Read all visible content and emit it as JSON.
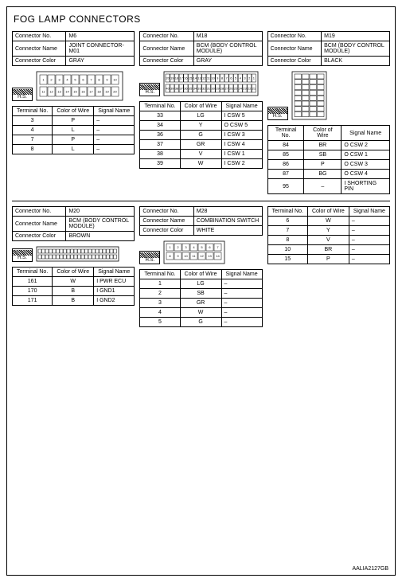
{
  "title": "FOG LAMP CONNECTORS",
  "code": "AALIA2127GB",
  "hs_label": "H.S.",
  "labels": {
    "connector_no": "Connector No.",
    "connector_name": "Connector Name",
    "connector_color": "Connector Color",
    "terminal_no": "Terminal No.",
    "color_of_wire": "Color of Wire",
    "signal_name": "Signal Name"
  },
  "top": {
    "left": {
      "no": "M6",
      "name": "JOINT CONNECTOR-M01",
      "color": "GRAY",
      "pins": [
        "1",
        "2",
        "3",
        "4",
        "5",
        "6",
        "7",
        "8",
        "9",
        "10",
        "11",
        "12",
        "13",
        "14",
        "15",
        "16",
        "17",
        "18",
        "19",
        "20"
      ],
      "wires": [
        {
          "t": "3",
          "c": "P",
          "s": "–"
        },
        {
          "t": "4",
          "c": "L",
          "s": "–"
        },
        {
          "t": "7",
          "c": "P",
          "s": "–"
        },
        {
          "t": "8",
          "c": "L",
          "s": "–"
        }
      ]
    },
    "mid": {
      "no": "M18",
      "name": "BCM (BODY CONTROL MODULE)",
      "color": "GRAY",
      "pins_a": [
        "20",
        "19",
        "18",
        "17",
        "16",
        "15",
        "14",
        "13",
        "12",
        "11",
        "10",
        "9",
        "8",
        "7",
        "6",
        "5",
        "4",
        "3",
        "2",
        "1"
      ],
      "pins_b": [
        "40",
        "39",
        "38",
        "37",
        "36",
        "35",
        "34",
        "33",
        "32",
        "31",
        "30",
        "29",
        "28",
        "27",
        "26",
        "25",
        "24",
        "23",
        "22",
        "21"
      ],
      "wires": [
        {
          "t": "33",
          "c": "LG",
          "s": "I CSW 5"
        },
        {
          "t": "34",
          "c": "Y",
          "s": "O CSW 5"
        },
        {
          "t": "36",
          "c": "G",
          "s": "I CSW 3"
        },
        {
          "t": "37",
          "c": "GR",
          "s": "I CSW 4"
        },
        {
          "t": "38",
          "c": "V",
          "s": "I CSW 1"
        },
        {
          "t": "39",
          "c": "W",
          "s": "I CSW 2"
        }
      ]
    },
    "right": {
      "no": "M19",
      "name": "BCM (BODY CONTROL MODULE)",
      "color": "BLACK",
      "wires": [
        {
          "t": "84",
          "c": "BR",
          "s": "O CSW 2"
        },
        {
          "t": "85",
          "c": "SB",
          "s": "O CSW 1"
        },
        {
          "t": "86",
          "c": "P",
          "s": "O CSW 3"
        },
        {
          "t": "87",
          "c": "BG",
          "s": "O CSW 4"
        },
        {
          "t": "95",
          "c": "–",
          "s": "I SHORTING PIN"
        }
      ]
    }
  },
  "bottom": {
    "left": {
      "no": "M20",
      "name": "BCM (BODY CONTROL MODULE)",
      "color": "BROWN",
      "wires": [
        {
          "t": "161",
          "c": "W",
          "s": "I PWR ECU"
        },
        {
          "t": "170",
          "c": "B",
          "s": "I GND1"
        },
        {
          "t": "171",
          "c": "B",
          "s": "I GND2"
        }
      ]
    },
    "mid": {
      "no": "M28",
      "name": "COMBINATION SWITCH",
      "color": "WHITE",
      "pins_a": [
        "1",
        "2",
        "3",
        "4",
        "5",
        "6",
        "7"
      ],
      "pins_b": [
        "8",
        "9",
        "10",
        "11",
        "12",
        "13",
        "14"
      ],
      "wires": [
        {
          "t": "1",
          "c": "LG",
          "s": "–"
        },
        {
          "t": "2",
          "c": "SB",
          "s": "–"
        },
        {
          "t": "3",
          "c": "GR",
          "s": "–"
        },
        {
          "t": "4",
          "c": "W",
          "s": "–"
        },
        {
          "t": "5",
          "c": "G",
          "s": "–"
        }
      ]
    },
    "right": {
      "wires": [
        {
          "t": "6",
          "c": "W",
          "s": "–"
        },
        {
          "t": "7",
          "c": "Y",
          "s": "–"
        },
        {
          "t": "8",
          "c": "V",
          "s": "–"
        },
        {
          "t": "10",
          "c": "BR",
          "s": "–"
        },
        {
          "t": "15",
          "c": "P",
          "s": "–"
        }
      ]
    }
  }
}
